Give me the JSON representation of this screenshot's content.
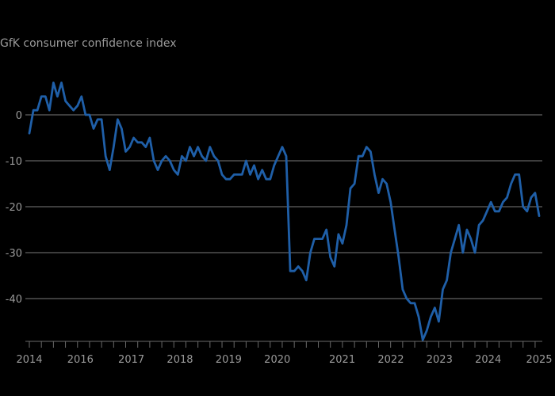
{
  "chart_data": {
    "type": "line",
    "title": "GfK consumer confidence index",
    "xlabel": "",
    "ylabel": "",
    "ylim": [
      -50,
      10
    ],
    "yticks": [
      0,
      -10,
      -20,
      -30,
      -40
    ],
    "ytick_labels": [
      "0",
      "-10",
      "-20",
      "-30",
      "-40"
    ],
    "xlim": [
      2014.0,
      2025.0
    ],
    "xtick_labels": [
      {
        "label": "2014",
        "x": 2014.0
      },
      {
        "label": "2016",
        "x": 2015.1
      },
      {
        "label": "2017",
        "x": 2016.2
      },
      {
        "label": "2018",
        "x": 2017.25
      },
      {
        "label": "2019",
        "x": 2018.3
      },
      {
        "label": "2020",
        "x": 2019.35
      },
      {
        "label": "2021",
        "x": 2020.75
      },
      {
        "label": "2022",
        "x": 2021.8
      },
      {
        "label": "2023",
        "x": 2022.85
      },
      {
        "label": "2024",
        "x": 2023.9
      },
      {
        "label": "2025",
        "x": 2025.0
      }
    ],
    "grid": true,
    "legend": "none",
    "series": [
      {
        "name": "GfK consumer confidence index",
        "color": "#1f5fa8",
        "x_start": 2014.0,
        "x_step_months": 1,
        "values": [
          -4,
          1,
          1,
          4,
          4,
          1,
          7,
          4,
          7,
          3,
          2,
          1,
          2,
          4,
          0,
          0,
          -3,
          -1,
          -1,
          -9,
          -12,
          -7,
          -1,
          -3,
          -8,
          -7,
          -5,
          -6,
          -6,
          -7,
          -5,
          -10,
          -12,
          -10,
          -9,
          -10,
          -12,
          -13,
          -9,
          -10,
          -7,
          -9,
          -7,
          -9,
          -10,
          -7,
          -9,
          -10,
          -13,
          -14,
          -14,
          -13,
          -13,
          -13,
          -10,
          -13,
          -11,
          -14,
          -12,
          -14,
          -14,
          -11,
          -9,
          -7,
          -9,
          -34,
          -34,
          -33,
          -34,
          -36,
          -30,
          -27,
          -27,
          -27,
          -25,
          -31,
          -33,
          -26,
          -28,
          -24,
          -16,
          -15,
          -9,
          -9,
          -7,
          -8,
          -13,
          -17,
          -14,
          -15,
          -19,
          -25,
          -31,
          -38,
          -40,
          -41,
          -41,
          -44,
          -49,
          -47,
          -44,
          -42,
          -45,
          -38,
          -36,
          -30,
          -27,
          -24,
          -30,
          -25,
          -27,
          -30,
          -24,
          -23,
          -21,
          -19,
          -21,
          -21,
          -19,
          -18,
          -15,
          -13,
          -13,
          -20,
          -21,
          -18,
          -17,
          -22
        ]
      }
    ]
  }
}
